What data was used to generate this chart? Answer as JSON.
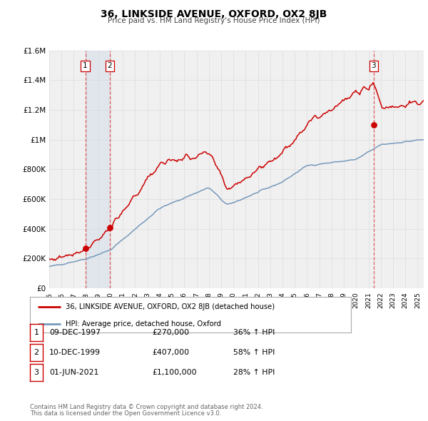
{
  "title": "36, LINKSIDE AVENUE, OXFORD, OX2 8JB",
  "subtitle": "Price paid vs. HM Land Registry's House Price Index (HPI)",
  "legend_line1": "36, LINKSIDE AVENUE, OXFORD, OX2 8JB (detached house)",
  "legend_line2": "HPI: Average price, detached house, Oxford",
  "footer1": "Contains HM Land Registry data © Crown copyright and database right 2024.",
  "footer2": "This data is licensed under the Open Government Licence v3.0.",
  "red_color": "#cc0000",
  "blue_color": "#7799bb",
  "bg_color": "#f0f0f0",
  "grid_color": "#dddddd",
  "shade_color": "#c8d8e8",
  "ylim": [
    0,
    1600000
  ],
  "yticks": [
    0,
    200000,
    400000,
    600000,
    800000,
    1000000,
    1200000,
    1400000,
    1600000
  ],
  "ytick_labels": [
    "£0",
    "£200K",
    "£400K",
    "£600K",
    "£800K",
    "£1M",
    "£1.2M",
    "£1.4M",
    "£1.6M"
  ],
  "xmin": 1995.0,
  "xmax": 2025.5,
  "transaction_dates": [
    1997.94,
    1999.94,
    2021.42
  ],
  "transaction_prices": [
    270000,
    407000,
    1100000
  ],
  "transaction_labels": [
    "1",
    "2",
    "3"
  ],
  "table_data": [
    [
      "1",
      "09-DEC-1997",
      "£270,000",
      "36% ↑ HPI"
    ],
    [
      "2",
      "10-DEC-1999",
      "£407,000",
      "58% ↑ HPI"
    ],
    [
      "3",
      "01-JUN-2021",
      "£1,100,000",
      "28% ↑ HPI"
    ]
  ],
  "shade_regions": [
    [
      1997.94,
      1999.94
    ]
  ],
  "vline_color": "#dd4444"
}
